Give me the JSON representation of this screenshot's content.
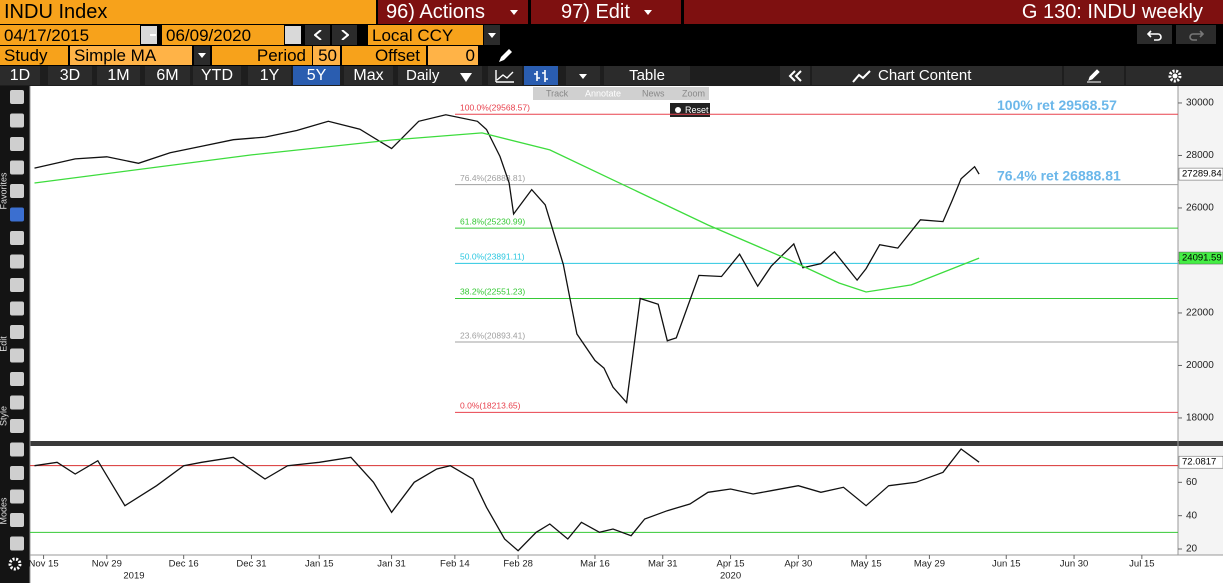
{
  "header": {
    "title": "INDU Index",
    "actions": "96) Actions",
    "edit": "97) Edit",
    "page": "G 130: INDU weekly",
    "start_date": "04/17/2015",
    "end_date": "06/09/2020",
    "currency": "Local CCY",
    "study_label": "Study",
    "study": "Simple MA",
    "period_label": "Period",
    "period": 50,
    "offset_label": "Offset",
    "offset": 0
  },
  "toolbar": {
    "ranges": [
      "1D",
      "3D",
      "1M",
      "6M",
      "YTD",
      "1Y",
      "5Y",
      "Max"
    ],
    "active_range": "5Y",
    "frequency": "Daily",
    "table": "Table",
    "chart_content": "Chart Content"
  },
  "overlay": {
    "tools": [
      "Track",
      "Annotate",
      "News",
      "Zoom"
    ],
    "reset": "Reset"
  },
  "side": {
    "labels": [
      "Favorites",
      "Edit",
      "Style",
      "Modes"
    ]
  },
  "chart_data": [
    {
      "type": "line",
      "xlim": [
        "2019-11-12",
        "2020-07-23"
      ],
      "ylim": [
        17160,
        30570
      ],
      "yticks": [
        18000,
        20000,
        22000,
        24000,
        26000,
        28000,
        30000
      ],
      "series": [
        {
          "color": "#111111",
          "x": [
            "2019-11-13",
            "2019-11-22",
            "2019-11-29",
            "2019-12-06",
            "2019-12-13",
            "2019-12-20",
            "2019-12-27",
            "2020-01-03",
            "2020-01-10",
            "2020-01-17",
            "2020-01-24",
            "2020-01-31",
            "2020-02-06",
            "2020-02-12",
            "2020-02-19",
            "2020-02-21",
            "2020-02-24",
            "2020-02-26",
            "2020-02-27",
            "2020-03-02",
            "2020-03-05",
            "2020-03-09",
            "2020-03-12",
            "2020-03-16",
            "2020-03-18",
            "2020-03-20",
            "2020-03-23",
            "2020-03-26",
            "2020-03-30",
            "2020-04-01",
            "2020-04-03",
            "2020-04-08",
            "2020-04-13",
            "2020-04-17",
            "2020-04-21",
            "2020-04-24",
            "2020-04-29",
            "2020-05-01",
            "2020-05-05",
            "2020-05-08",
            "2020-05-13",
            "2020-05-15",
            "2020-05-18",
            "2020-05-22",
            "2020-05-27",
            "2020-06-01",
            "2020-06-03",
            "2020-06-05",
            "2020-06-08",
            "2020-06-09"
          ],
          "values": [
            27520,
            27870,
            27950,
            27700,
            28100,
            28350,
            28600,
            28700,
            28950,
            29300,
            29000,
            28260,
            29300,
            29550,
            29300,
            28990,
            27960,
            26960,
            25770,
            26700,
            26120,
            23850,
            21200,
            20190,
            19900,
            19170,
            18590,
            22550,
            22330,
            20940,
            21050,
            23430,
            23390,
            24240,
            23020,
            23780,
            24630,
            23720,
            23880,
            24330,
            23250,
            23690,
            24600,
            24470,
            25550,
            25480,
            26270,
            27110,
            27570,
            27290
          ]
        },
        {
          "color": "#3ddc3d",
          "x": [
            "2019-11-13",
            "2019-12-31",
            "2020-01-31",
            "2020-02-20",
            "2020-03-06",
            "2020-03-20",
            "2020-04-10",
            "2020-04-28",
            "2020-05-09",
            "2020-05-15",
            "2020-05-25",
            "2020-06-09"
          ],
          "values": [
            26950,
            28020,
            28590,
            28860,
            28210,
            27070,
            25350,
            24020,
            23140,
            22800,
            23070,
            24090
          ]
        }
      ],
      "levels": [
        {
          "value": 29568.57,
          "label": "100.0%(29568.57)",
          "color": "#e8424e"
        },
        {
          "value": 26888.81,
          "label": "76.4%(26888.81)",
          "color": "#a0a0a0"
        },
        {
          "value": 25230.99,
          "label": "61.8%(25230.99)",
          "color": "#36c936"
        },
        {
          "value": 23891.11,
          "label": "50.0%(23891.11)",
          "color": "#2cc7e0"
        },
        {
          "value": 22551.23,
          "label": "38.2%(22551.23)",
          "color": "#36c936"
        },
        {
          "value": 20893.41,
          "label": "23.6%(20893.41)",
          "color": "#a0a0a0"
        },
        {
          "value": 18213.65,
          "label": "0.0%(18213.65)",
          "color": "#e8424e"
        }
      ],
      "annotations": [
        {
          "text": "100% ret 29568.57",
          "value": 29568.57
        },
        {
          "text": "76.4% ret 26888.81",
          "value": 26888.81
        }
      ],
      "last_labels": [
        {
          "value": 27289.84,
          "label": "27289.84",
          "color": "#ffffff"
        },
        {
          "value": 24091.59,
          "label": "24091.59",
          "color": "#44ee44"
        }
      ]
    },
    {
      "type": "line",
      "xlim": [
        "2019-11-12",
        "2020-07-23"
      ],
      "ylim": [
        16.4,
        81.8
      ],
      "yticks": [
        20,
        40,
        60
      ],
      "series": [
        {
          "color": "#111111",
          "x": [
            "2019-11-13",
            "2019-11-18",
            "2019-11-22",
            "2019-11-27",
            "2019-12-03",
            "2019-12-10",
            "2019-12-16",
            "2019-12-20",
            "2019-12-27",
            "2020-01-03",
            "2020-01-08",
            "2020-01-15",
            "2020-01-22",
            "2020-01-27",
            "2020-01-31",
            "2020-02-05",
            "2020-02-10",
            "2020-02-13",
            "2020-02-18",
            "2020-02-21",
            "2020-02-25",
            "2020-02-28",
            "2020-03-03",
            "2020-03-06",
            "2020-03-10",
            "2020-03-13",
            "2020-03-17",
            "2020-03-20",
            "2020-03-24",
            "2020-03-27",
            "2020-04-01",
            "2020-04-06",
            "2020-04-10",
            "2020-04-15",
            "2020-04-20",
            "2020-04-24",
            "2020-04-30",
            "2020-05-05",
            "2020-05-10",
            "2020-05-15",
            "2020-05-20",
            "2020-05-26",
            "2020-06-01",
            "2020-06-05",
            "2020-06-09"
          ],
          "values": [
            70,
            72,
            65,
            73,
            46,
            58,
            70,
            72,
            75,
            62,
            70,
            72,
            75,
            60,
            42,
            60,
            68,
            70,
            62,
            45,
            26,
            19,
            30,
            35,
            26,
            36,
            30,
            32,
            28,
            38,
            43,
            47,
            54,
            56,
            53,
            55,
            58,
            54,
            57,
            46,
            58,
            60,
            66,
            80,
            72.08
          ]
        }
      ],
      "levels": [
        {
          "value": 70,
          "color": "#d83030"
        },
        {
          "value": 30,
          "color": "#36c936"
        }
      ],
      "last_labels": [
        {
          "value": 72.0817,
          "label": "72.0817",
          "color": "#ffffff"
        }
      ],
      "xticks": [
        {
          "value": "2019-11-15",
          "label": "Nov 15"
        },
        {
          "value": "2019-11-29",
          "label": "Nov 29"
        },
        {
          "value": "2019-12-16",
          "label": "Dec 16"
        },
        {
          "value": "2019-12-31",
          "label": "Dec 31"
        },
        {
          "value": "2020-01-15",
          "label": "Jan 15"
        },
        {
          "value": "2020-01-31",
          "label": "Jan 31"
        },
        {
          "value": "2020-02-14",
          "label": "Feb 14"
        },
        {
          "value": "2020-02-28",
          "label": "Feb 28"
        },
        {
          "value": "2020-03-16",
          "label": "Mar 16"
        },
        {
          "value": "2020-03-31",
          "label": "Mar 31"
        },
        {
          "value": "2020-04-15",
          "label": "Apr 15"
        },
        {
          "value": "2020-04-30",
          "label": "Apr 30"
        },
        {
          "value": "2020-05-15",
          "label": "May 15"
        },
        {
          "value": "2020-05-29",
          "label": "May 29"
        },
        {
          "value": "2020-06-15",
          "label": "Jun 15"
        },
        {
          "value": "2020-06-30",
          "label": "Jun 30"
        },
        {
          "value": "2020-07-15",
          "label": "Jul 15"
        }
      ],
      "xyears": [
        {
          "value": "2019-12-05",
          "label": "2019"
        },
        {
          "value": "2020-04-15",
          "label": "2020"
        }
      ]
    }
  ]
}
